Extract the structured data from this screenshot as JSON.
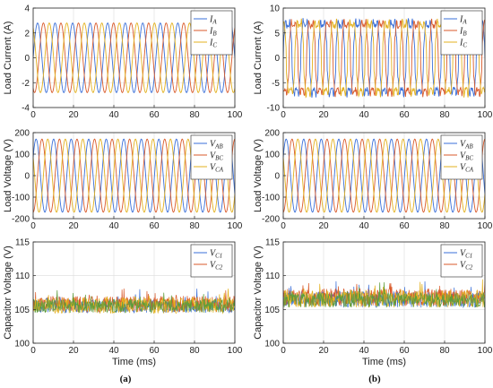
{
  "panel_labels": [
    "(a)",
    "(b)"
  ],
  "colors": {
    "blue": "#3a6fd8",
    "red": "#d95a2b",
    "yellow": "#e3b11f",
    "green": "#5e9c3a"
  },
  "chart_data": [
    {
      "type": "line",
      "ylabel": "Load Current (A)",
      "xlabel": "",
      "xlim": [
        0,
        100
      ],
      "ylim": [
        -4,
        4
      ],
      "xticks": [
        0,
        20,
        40,
        60,
        80,
        100
      ],
      "yticks": [
        -4,
        -2,
        0,
        2,
        4
      ],
      "legend_placement": "top-right",
      "series": [
        {
          "name": "I_A",
          "label": "I",
          "sub": "A",
          "color": "#3a6fd8",
          "amplitude": 2.8,
          "phase_deg": 0,
          "freq_per_100ms": 11.5,
          "shape": "sine"
        },
        {
          "name": "I_B",
          "label": "I",
          "sub": "B",
          "color": "#d95a2b",
          "amplitude": 2.8,
          "phase_deg": -120,
          "freq_per_100ms": 11.5,
          "shape": "sine"
        },
        {
          "name": "I_C",
          "label": "I",
          "sub": "C",
          "color": "#e3b11f",
          "amplitude": 2.8,
          "phase_deg": 120,
          "freq_per_100ms": 11.5,
          "shape": "sine"
        }
      ]
    },
    {
      "type": "line",
      "ylabel": "Load Current (A)",
      "xlabel": "",
      "xlim": [
        0,
        100
      ],
      "ylim": [
        -10,
        10
      ],
      "xticks": [
        0,
        20,
        40,
        60,
        80,
        100
      ],
      "yticks": [
        -10,
        -5,
        0,
        5,
        10
      ],
      "legend_placement": "top-right",
      "series": [
        {
          "name": "I_A",
          "label": "I",
          "sub": "A",
          "color": "#3a6fd8",
          "amplitude": 7.5,
          "phase_deg": 0,
          "freq_per_100ms": 11.5,
          "shape": "pulse"
        },
        {
          "name": "I_B",
          "label": "I",
          "sub": "B",
          "color": "#d95a2b",
          "amplitude": 7.5,
          "phase_deg": -120,
          "freq_per_100ms": 11.5,
          "shape": "pulse"
        },
        {
          "name": "I_C",
          "label": "I",
          "sub": "C",
          "color": "#e3b11f",
          "amplitude": 7.5,
          "phase_deg": 120,
          "freq_per_100ms": 11.5,
          "shape": "pulse"
        }
      ]
    },
    {
      "type": "line",
      "ylabel": "Load Voltage (V)",
      "xlabel": "",
      "xlim": [
        0,
        100
      ],
      "ylim": [
        -200,
        200
      ],
      "xticks": [
        0,
        20,
        40,
        60,
        80,
        100
      ],
      "yticks": [
        -200,
        -100,
        0,
        100,
        200
      ],
      "legend_placement": "top-right",
      "series": [
        {
          "name": "V_AB",
          "label": "V",
          "sub": "AB",
          "color": "#3a6fd8",
          "amplitude": 170,
          "phase_deg": 30,
          "freq_per_100ms": 11.5,
          "shape": "sine"
        },
        {
          "name": "V_BC",
          "label": "V",
          "sub": "BC",
          "color": "#d95a2b",
          "amplitude": 170,
          "phase_deg": -90,
          "freq_per_100ms": 11.5,
          "shape": "sine"
        },
        {
          "name": "V_CA",
          "label": "V",
          "sub": "CA",
          "color": "#e3b11f",
          "amplitude": 170,
          "phase_deg": 150,
          "freq_per_100ms": 11.5,
          "shape": "sine"
        }
      ]
    },
    {
      "type": "line",
      "ylabel": "Load Voltage (V)",
      "xlabel": "",
      "xlim": [
        0,
        100
      ],
      "ylim": [
        -200,
        200
      ],
      "xticks": [
        0,
        20,
        40,
        60,
        80,
        100
      ],
      "yticks": [
        -200,
        -100,
        0,
        100,
        200
      ],
      "legend_placement": "top-right",
      "series": [
        {
          "name": "V_AB",
          "label": "V",
          "sub": "AB",
          "color": "#3a6fd8",
          "amplitude": 170,
          "phase_deg": 30,
          "freq_per_100ms": 11.5,
          "shape": "sine"
        },
        {
          "name": "V_BC",
          "label": "V",
          "sub": "BC",
          "color": "#d95a2b",
          "amplitude": 170,
          "phase_deg": -90,
          "freq_per_100ms": 11.5,
          "shape": "sine"
        },
        {
          "name": "V_CA",
          "label": "V",
          "sub": "CA",
          "color": "#e3b11f",
          "amplitude": 170,
          "phase_deg": 150,
          "freq_per_100ms": 11.5,
          "shape": "sine"
        }
      ]
    },
    {
      "type": "line",
      "ylabel": "Capacitor Voltage (V)",
      "xlabel": "Time (ms)",
      "xlim": [
        0,
        100
      ],
      "ylim": [
        100,
        115
      ],
      "xticks": [
        0,
        20,
        40,
        60,
        80,
        100
      ],
      "yticks": [
        100,
        105,
        110,
        115
      ],
      "legend_placement": "top-right",
      "series": [
        {
          "name": "V_C1",
          "label": "V",
          "sub": "C1",
          "color": "#3a6fd8",
          "mean": 105.5,
          "ripple": 1.0,
          "shape": "noise",
          "seed": 3
        },
        {
          "name": "V_C2",
          "label": "V",
          "sub": "C2",
          "color": "#d95a2b",
          "mean": 105.8,
          "ripple": 1.2,
          "shape": "noise",
          "seed": 11
        },
        {
          "name": "",
          "label": "",
          "sub": "",
          "color": "#e3b11f",
          "mean": 105.6,
          "ripple": 1.2,
          "shape": "noise",
          "seed": 17,
          "legend": false
        },
        {
          "name": "",
          "label": "",
          "sub": "",
          "color": "#5e9c3a",
          "mean": 105.5,
          "ripple": 1.0,
          "shape": "noise",
          "seed": 29,
          "legend": false
        }
      ]
    },
    {
      "type": "line",
      "ylabel": "Capacitor Voltage (V)",
      "xlabel": "Time (ms)",
      "xlim": [
        0,
        100
      ],
      "ylim": [
        100,
        115
      ],
      "xticks": [
        0,
        20,
        40,
        60,
        80,
        100
      ],
      "yticks": [
        100,
        105,
        110,
        115
      ],
      "legend_placement": "top-right",
      "series": [
        {
          "name": "V_C1",
          "label": "V",
          "sub": "C1",
          "color": "#3a6fd8",
          "mean": 106.5,
          "ripple": 1.2,
          "shape": "noise",
          "seed": 5
        },
        {
          "name": "V_C2",
          "label": "V",
          "sub": "C2",
          "color": "#d95a2b",
          "mean": 106.8,
          "ripple": 1.3,
          "shape": "noise",
          "seed": 13
        },
        {
          "name": "",
          "label": "",
          "sub": "",
          "color": "#e3b11f",
          "mean": 106.6,
          "ripple": 1.3,
          "shape": "noise",
          "seed": 21,
          "legend": false
        },
        {
          "name": "",
          "label": "",
          "sub": "",
          "color": "#5e9c3a",
          "mean": 106.4,
          "ripple": 1.1,
          "shape": "noise",
          "seed": 31,
          "legend": false
        }
      ]
    }
  ]
}
